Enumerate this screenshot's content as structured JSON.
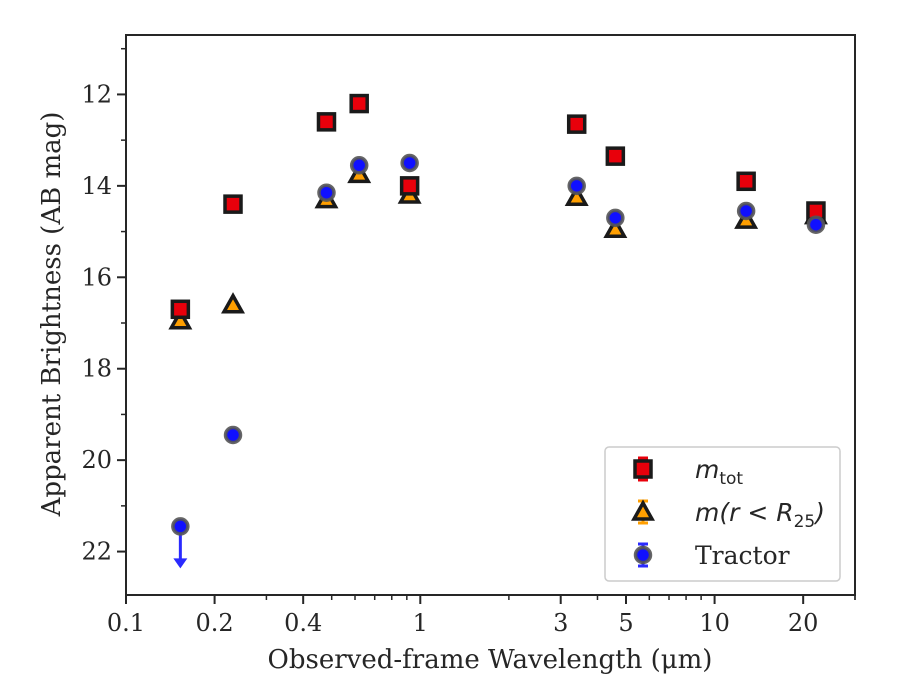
{
  "chart_data": {
    "type": "scatter",
    "title": "",
    "xlabel": "Observed-frame Wavelength (μm)",
    "ylabel": "Apparent Brightness (AB mag)",
    "xscale": "log",
    "xlim": [
      0.1,
      30
    ],
    "ylim": [
      22.95,
      10.7
    ],
    "y_inverted": true,
    "xticks": [
      0.1,
      0.2,
      0.4,
      1,
      3,
      5,
      10,
      20
    ],
    "xtick_labels": [
      "0.1",
      "0.2",
      "0.4",
      "1",
      "3",
      "5",
      "10",
      "20"
    ],
    "yticks": [
      12,
      14,
      16,
      18,
      20,
      22
    ],
    "ytick_labels": [
      "12",
      "14",
      "16",
      "18",
      "20",
      "22"
    ],
    "grid": false,
    "legend_position": "lower-right",
    "series": [
      {
        "name": "m_tot",
        "legend_label": {
          "base": "m",
          "sub": "tot"
        },
        "marker": "square",
        "fill": "#e8000b",
        "edge": "#1a1a1a",
        "points": [
          {
            "x": 0.153,
            "y": 16.7
          },
          {
            "x": 0.231,
            "y": 14.4
          },
          {
            "x": 0.48,
            "y": 12.6
          },
          {
            "x": 0.62,
            "y": 12.2
          },
          {
            "x": 0.92,
            "y": 14.0
          },
          {
            "x": 3.4,
            "y": 12.65
          },
          {
            "x": 4.6,
            "y": 13.35
          },
          {
            "x": 12.8,
            "y": 13.9
          },
          {
            "x": 22.1,
            "y": 14.55
          }
        ]
      },
      {
        "name": "m(r < R25)",
        "legend_label": {
          "base": "m(r < R",
          "sub": "25",
          "tail": ")"
        },
        "marker": "triangle",
        "fill": "#ff9f00",
        "edge": "#1a1a1a",
        "points": [
          {
            "x": 0.153,
            "y": 16.95
          },
          {
            "x": 0.231,
            "y": 16.6
          },
          {
            "x": 0.48,
            "y": 14.3
          },
          {
            "x": 0.62,
            "y": 13.75
          },
          {
            "x": 0.92,
            "y": 14.2
          },
          {
            "x": 3.4,
            "y": 14.25
          },
          {
            "x": 4.6,
            "y": 14.95
          },
          {
            "x": 12.8,
            "y": 14.75
          },
          {
            "x": 22.1,
            "y": 14.65
          }
        ]
      },
      {
        "name": "Tractor",
        "legend_label": {
          "base": "Tractor"
        },
        "marker": "circle",
        "fill": "#1010ff",
        "edge": "#555555",
        "points": [
          {
            "x": 0.153,
            "y": 21.45,
            "upper_limit": true
          },
          {
            "x": 0.231,
            "y": 19.45
          },
          {
            "x": 0.48,
            "y": 14.15
          },
          {
            "x": 0.62,
            "y": 13.55
          },
          {
            "x": 0.92,
            "y": 13.5
          },
          {
            "x": 3.4,
            "y": 14.0
          },
          {
            "x": 4.6,
            "y": 14.7
          },
          {
            "x": 12.8,
            "y": 14.55
          },
          {
            "x": 22.1,
            "y": 14.85
          }
        ]
      }
    ]
  }
}
